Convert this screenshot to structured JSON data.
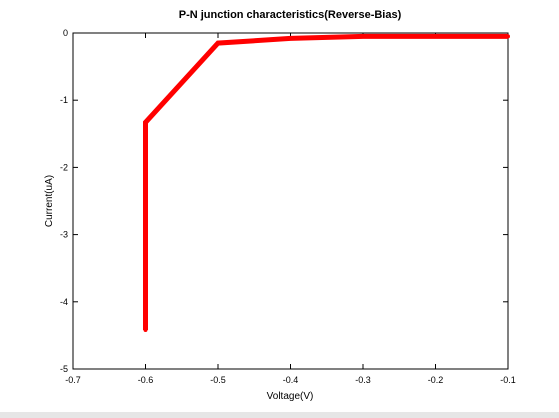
{
  "chart_data": {
    "type": "line",
    "title": "P-N junction characteristics(Reverse-Bias)",
    "xlabel": "Voltage(V)",
    "ylabel": "Current(uA)",
    "xlim": [
      -0.7,
      -0.1
    ],
    "ylim": [
      -5,
      0
    ],
    "x_ticks": [
      "-0.7",
      "-0.6",
      "-0.5",
      "-0.4",
      "-0.3",
      "-0.2",
      "-0.1"
    ],
    "y_ticks": [
      "0",
      "-1",
      "-2",
      "-3",
      "-4",
      "-5"
    ],
    "grid": false,
    "series": [
      {
        "color": "#ff0000",
        "x": [
          -0.6,
          -0.6,
          -0.5,
          -0.4,
          -0.3,
          -0.2,
          -0.1
        ],
        "y": [
          -4.42,
          -1.33,
          -0.15,
          -0.08,
          -0.05,
          -0.05,
          -0.05
        ]
      }
    ]
  }
}
